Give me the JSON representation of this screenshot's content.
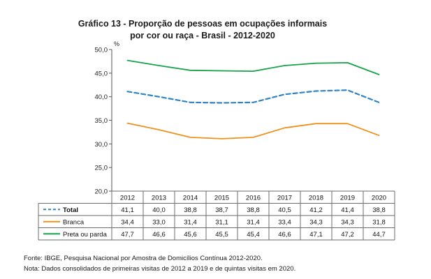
{
  "chart_data": {
    "type": "line",
    "title_line1": "Gráfico 13 - Proporção de pessoas em ocupações informais",
    "title_line2": "por cor ou raça - Brasil - 2012-2020",
    "ylabel": "%",
    "ylim": [
      20.0,
      50.0
    ],
    "yticks": [
      "50,0",
      "45,0",
      "40,0",
      "35,0",
      "30,0",
      "25,0",
      "20,0"
    ],
    "ytick_values": [
      50,
      45,
      40,
      35,
      30,
      25,
      20
    ],
    "categories": [
      "2012",
      "2013",
      "2014",
      "2015",
      "2016",
      "2017",
      "2018",
      "2019",
      "2020"
    ],
    "grid": false,
    "series": [
      {
        "name": "Total",
        "color": "#2f84c6",
        "style": "dashed",
        "bold": true,
        "values": [
          41.1,
          40.0,
          38.8,
          38.7,
          38.8,
          40.5,
          41.2,
          41.4,
          38.8
        ],
        "labels": [
          "41,1",
          "40,0",
          "38,8",
          "38,7",
          "38,8",
          "40,5",
          "41,2",
          "41,4",
          "38,8"
        ]
      },
      {
        "name": "Branca",
        "color": "#f0901e",
        "style": "solid",
        "bold": false,
        "values": [
          34.4,
          33.0,
          31.4,
          31.1,
          31.4,
          33.4,
          34.3,
          34.3,
          31.8
        ],
        "labels": [
          "34,4",
          "33,0",
          "31,4",
          "31,1",
          "31,4",
          "33,4",
          "34,3",
          "34,3",
          "31,8"
        ]
      },
      {
        "name": "Preta ou parda",
        "color": "#17a34a",
        "style": "solid",
        "bold": false,
        "values": [
          47.7,
          46.6,
          45.6,
          45.5,
          45.4,
          46.6,
          47.1,
          47.2,
          44.7
        ],
        "labels": [
          "47,7",
          "46,6",
          "45,6",
          "45,5",
          "45,4",
          "46,6",
          "47,1",
          "47,2",
          "44,7"
        ]
      }
    ]
  },
  "footer": {
    "source": "Fonte: IBGE, Pesquisa Nacional por Amostra de Domicílios Contínua 2012-2020.",
    "note": "Nota: Dados consolidados de primeiras visitas de 2012 a 2019 e de quintas visitas em 2020."
  }
}
